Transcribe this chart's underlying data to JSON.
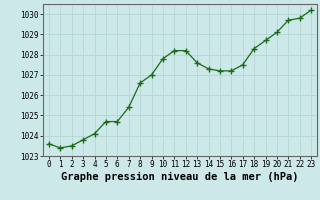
{
  "x": [
    0,
    1,
    2,
    3,
    4,
    5,
    6,
    7,
    8,
    9,
    10,
    11,
    12,
    13,
    14,
    15,
    16,
    17,
    18,
    19,
    20,
    21,
    22,
    23
  ],
  "y": [
    1023.6,
    1023.4,
    1023.5,
    1023.8,
    1024.1,
    1024.7,
    1024.7,
    1025.4,
    1026.6,
    1027.0,
    1027.8,
    1028.2,
    1028.2,
    1027.6,
    1027.3,
    1027.2,
    1027.2,
    1027.5,
    1028.3,
    1028.7,
    1029.1,
    1029.7,
    1029.8,
    1030.2
  ],
  "ylim": [
    1023,
    1030.5
  ],
  "yticks": [
    1023,
    1024,
    1025,
    1026,
    1027,
    1028,
    1029,
    1030
  ],
  "xticks": [
    0,
    1,
    2,
    3,
    4,
    5,
    6,
    7,
    8,
    9,
    10,
    11,
    12,
    13,
    14,
    15,
    16,
    17,
    18,
    19,
    20,
    21,
    22,
    23
  ],
  "xlabel": "Graphe pression niveau de la mer (hPa)",
  "line_color": "#1a6b1a",
  "marker": "+",
  "marker_size": 4,
  "bg_color": "#cce8e8",
  "grid_color": "#b8d8d8",
  "tick_fontsize": 5.5,
  "xlabel_fontsize": 7.5,
  "xlim": [
    -0.5,
    23.5
  ]
}
